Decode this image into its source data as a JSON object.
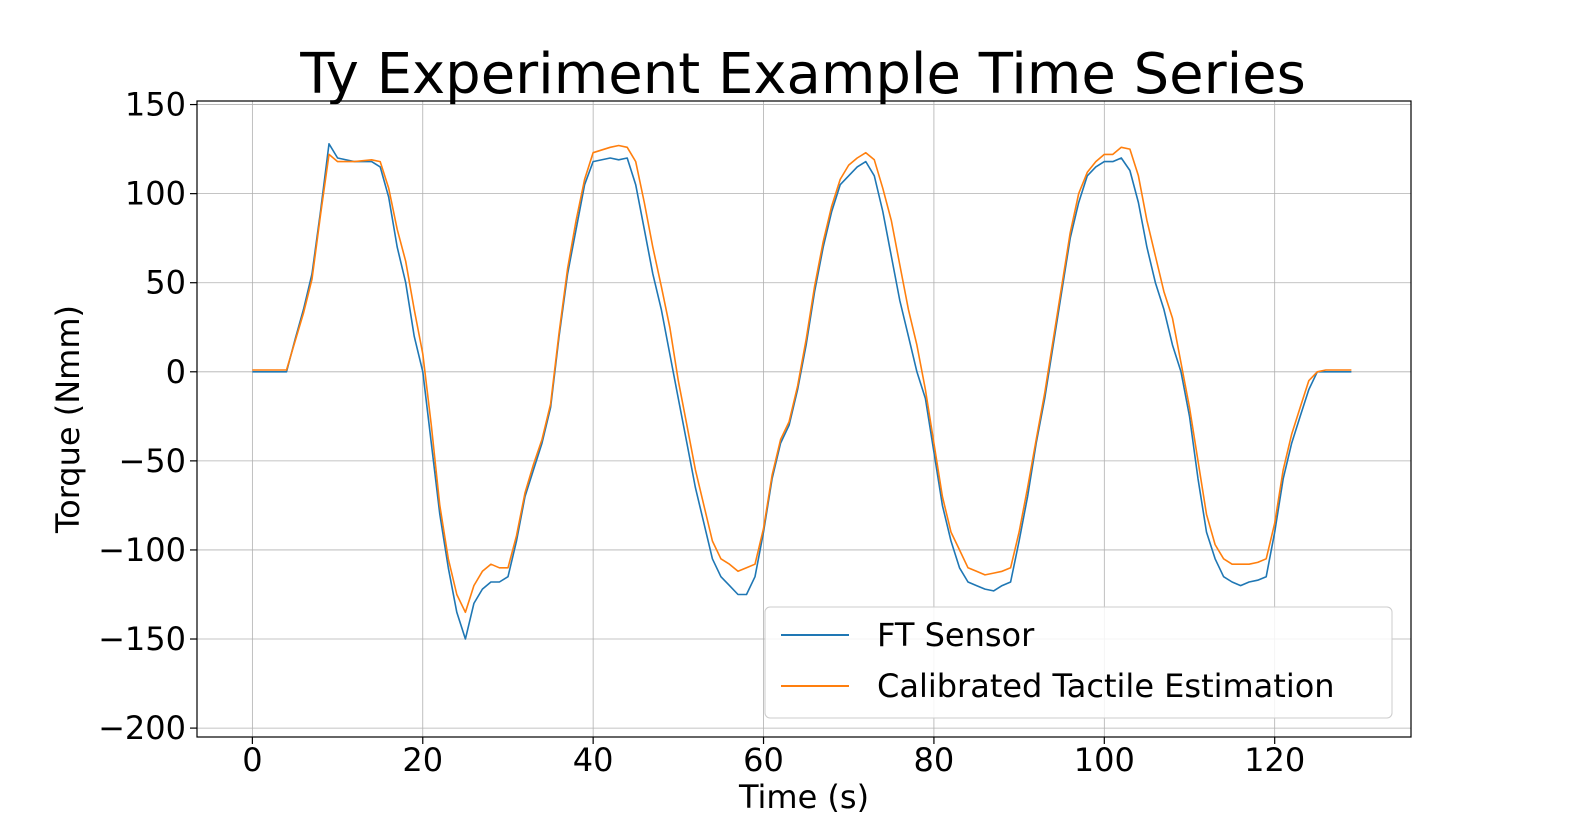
{
  "chart_data": {
    "type": "line",
    "title": "Ty Experiment Example Time Series",
    "xlabel": "Time (s)",
    "ylabel": "Torque (Nmm)",
    "xlim": [
      -6.5,
      136
    ],
    "ylim": [
      -205,
      152
    ],
    "xticks": [
      0,
      20,
      40,
      60,
      80,
      100,
      120
    ],
    "xtick_labels": [
      "0",
      "20",
      "40",
      "60",
      "80",
      "100",
      "120"
    ],
    "yticks": [
      150,
      100,
      50,
      0,
      -50,
      -100,
      -150,
      -200
    ],
    "ytick_labels": [
      "150",
      "100",
      "50",
      "0",
      "−50",
      "−100",
      "−150",
      "−200"
    ],
    "grid": true,
    "legend_position": "lower-right",
    "series": [
      {
        "name": "FT Sensor",
        "color": "#1f77b4",
        "x": [
          0,
          4,
          5,
          6,
          7,
          8,
          9,
          10,
          12,
          14,
          15,
          16,
          17,
          18,
          19,
          20,
          21,
          22,
          23,
          24,
          25,
          26,
          27,
          28,
          29,
          30,
          31,
          32,
          33,
          34,
          35,
          36,
          37,
          38,
          39,
          40,
          42,
          43,
          44,
          45,
          46,
          47,
          48,
          49,
          50,
          51,
          52,
          53,
          54,
          55,
          56,
          57,
          58,
          59,
          60,
          61,
          62,
          63,
          64,
          65,
          66,
          67,
          68,
          69,
          70,
          71,
          72,
          73,
          74,
          75,
          76,
          77,
          78,
          79,
          80,
          81,
          82,
          83,
          84,
          85,
          86,
          87,
          88,
          89,
          90,
          91,
          92,
          93,
          94,
          95,
          96,
          97,
          98,
          99,
          100,
          101,
          102,
          103,
          104,
          105,
          106,
          107,
          108,
          109,
          110,
          111,
          112,
          113,
          114,
          115,
          116,
          117,
          118,
          119,
          120,
          121,
          122,
          123,
          124,
          125,
          126,
          127,
          128,
          129
        ],
        "values": [
          0,
          0,
          18,
          35,
          55,
          90,
          128,
          120,
          118,
          118,
          115,
          98,
          70,
          50,
          20,
          0,
          -40,
          -80,
          -110,
          -135,
          -150,
          -130,
          -122,
          -118,
          -118,
          -115,
          -95,
          -70,
          -55,
          -40,
          -20,
          20,
          55,
          80,
          105,
          118,
          120,
          119,
          120,
          105,
          80,
          55,
          35,
          10,
          -15,
          -40,
          -65,
          -85,
          -105,
          -115,
          -120,
          -125,
          -125,
          -115,
          -90,
          -60,
          -40,
          -30,
          -10,
          15,
          45,
          70,
          90,
          105,
          110,
          115,
          118,
          110,
          90,
          65,
          40,
          20,
          0,
          -15,
          -45,
          -75,
          -95,
          -110,
          -118,
          -120,
          -122,
          -123,
          -120,
          -118,
          -95,
          -70,
          -40,
          -15,
          15,
          45,
          75,
          95,
          110,
          115,
          118,
          118,
          120,
          113,
          95,
          70,
          50,
          35,
          15,
          0,
          -25,
          -60,
          -90,
          -105,
          -115,
          -118,
          -120,
          -118,
          -117,
          -115,
          -90,
          -60,
          -40,
          -25,
          -10,
          0,
          0,
          0,
          0,
          0
        ]
      },
      {
        "name": "Calibrated Tactile Estimation",
        "color": "#ff7f0e",
        "x": [
          0,
          4,
          5,
          6,
          7,
          8,
          9,
          10,
          12,
          14,
          15,
          16,
          17,
          18,
          19,
          20,
          21,
          22,
          23,
          24,
          25,
          26,
          27,
          28,
          29,
          30,
          31,
          32,
          33,
          34,
          35,
          36,
          37,
          38,
          39,
          40,
          42,
          43,
          44,
          45,
          46,
          47,
          48,
          49,
          50,
          51,
          52,
          53,
          54,
          55,
          56,
          57,
          58,
          59,
          60,
          61,
          62,
          63,
          64,
          65,
          66,
          67,
          68,
          69,
          70,
          71,
          72,
          73,
          74,
          75,
          76,
          77,
          78,
          79,
          80,
          81,
          82,
          83,
          84,
          85,
          86,
          87,
          88,
          89,
          90,
          91,
          92,
          93,
          94,
          95,
          96,
          97,
          98,
          99,
          100,
          101,
          102,
          103,
          104,
          105,
          106,
          107,
          108,
          109,
          110,
          111,
          112,
          113,
          114,
          115,
          116,
          117,
          118,
          119,
          120,
          121,
          122,
          123,
          124,
          125,
          126,
          127,
          128,
          129
        ],
        "values": [
          1,
          1,
          17,
          33,
          52,
          88,
          122,
          118,
          118,
          119,
          118,
          103,
          80,
          62,
          35,
          10,
          -30,
          -75,
          -105,
          -125,
          -135,
          -120,
          -112,
          -108,
          -110,
          -110,
          -92,
          -68,
          -52,
          -38,
          -18,
          22,
          58,
          85,
          108,
          123,
          126,
          127,
          126,
          118,
          95,
          70,
          48,
          25,
          -5,
          -30,
          -55,
          -75,
          -95,
          -105,
          -108,
          -112,
          -110,
          -108,
          -88,
          -58,
          -38,
          -28,
          -8,
          18,
          48,
          73,
          93,
          108,
          116,
          120,
          123,
          119,
          103,
          85,
          60,
          35,
          15,
          -10,
          -40,
          -70,
          -90,
          -100,
          -110,
          -112,
          -114,
          -113,
          -112,
          -110,
          -90,
          -65,
          -38,
          -12,
          18,
          48,
          78,
          100,
          112,
          118,
          122,
          122,
          126,
          125,
          110,
          85,
          65,
          45,
          30,
          5,
          -20,
          -50,
          -80,
          -97,
          -105,
          -108,
          -108,
          -108,
          -107,
          -105,
          -85,
          -55,
          -35,
          -20,
          -5,
          0,
          1,
          1,
          1,
          1
        ]
      }
    ]
  }
}
